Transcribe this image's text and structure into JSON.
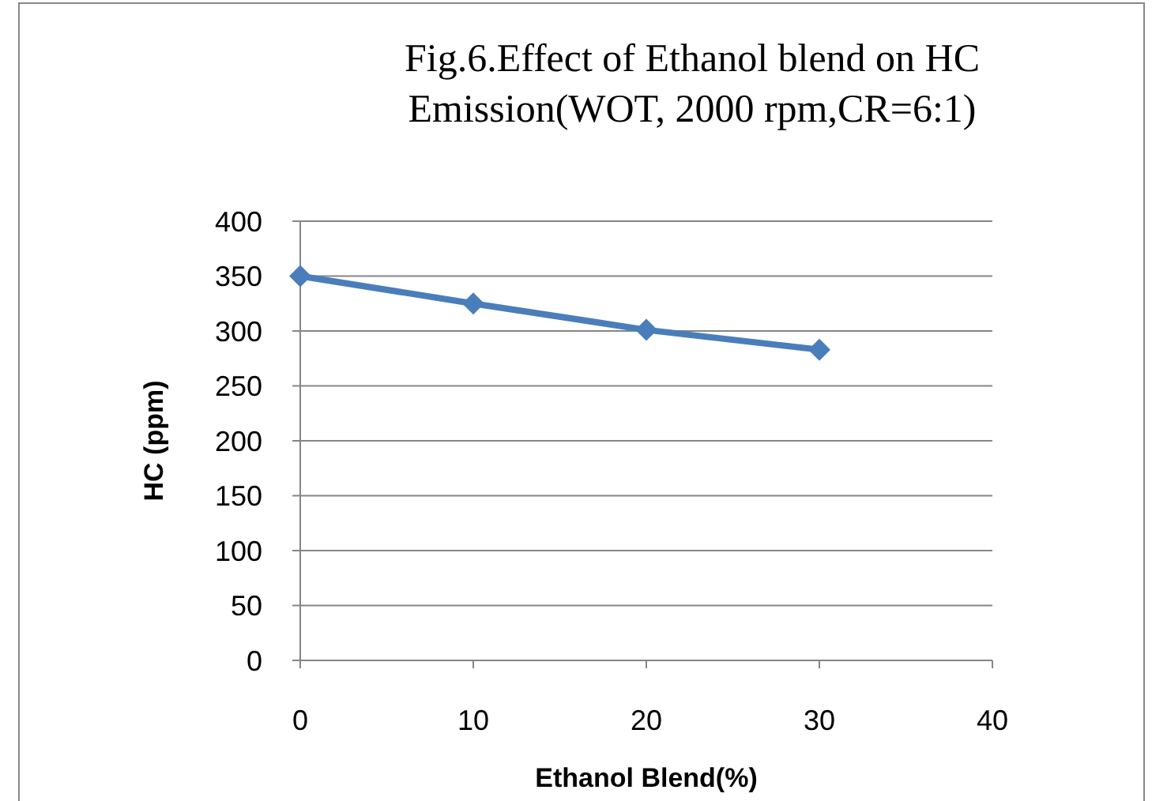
{
  "chart_data": {
    "type": "line",
    "title": "Fig.6.Effect of Ethanol blend on HC Emission(WOT, 2000 rpm,CR=6:1)",
    "xlabel": "Ethanol Blend(%)",
    "ylabel": "HC (ppm)",
    "x": [
      0,
      10,
      20,
      30
    ],
    "series": [
      {
        "color": "#4a7ebb",
        "values": [
          350,
          325,
          301,
          283
        ]
      }
    ],
    "xlim": [
      0,
      40
    ],
    "xticks": [
      0,
      10,
      20,
      30,
      40
    ],
    "ylim": [
      0,
      400
    ],
    "yticks": [
      0,
      50,
      100,
      150,
      200,
      250,
      300,
      350,
      400
    ],
    "grid": "y",
    "marker": "diamond",
    "line_style": "solid"
  }
}
